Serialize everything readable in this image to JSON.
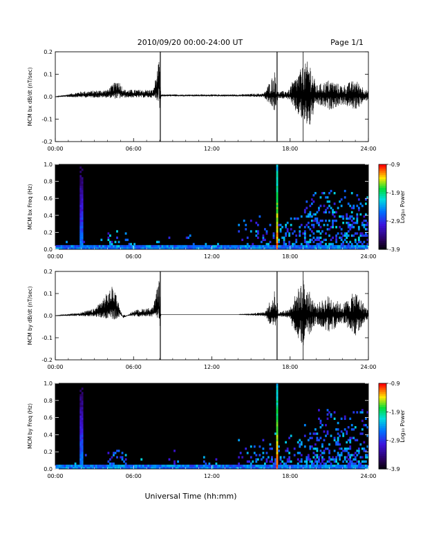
{
  "header": {
    "title": "2010/09/20  00:00-24:00 UT",
    "page": "Page 1/1"
  },
  "xlabel_bottom": "Universal Time (hh:mm)",
  "chart_data": [
    {
      "type": "line",
      "ylabel": "MCM bx dB/dt (nT/sec)",
      "xlim": [
        0,
        24
      ],
      "ylim": [
        -0.2,
        0.2
      ],
      "xticks": [
        "00:00",
        "06:00",
        "12:00",
        "18:00",
        "24:00"
      ],
      "yticks": [
        "-0.2",
        "-0.1",
        "0.0",
        "0.1",
        "0.2"
      ],
      "series": [
        {
          "x": [
            0,
            2,
            4,
            4.8,
            5.3,
            6,
            7.5,
            8.0,
            8.1,
            10,
            12,
            14,
            16,
            16.9,
            17.0,
            17.1,
            18,
            19,
            19.5,
            20,
            21,
            22,
            23,
            24
          ],
          "y": [
            0.0,
            0.03,
            0.04,
            0.1,
            0.04,
            0.04,
            0.04,
            0.22,
            0.01,
            0.01,
            0.01,
            0.01,
            0.02,
            0.22,
            -0.2,
            0.03,
            0.05,
            0.15,
            0.18,
            0.05,
            0.08,
            0.05,
            0.08,
            0.02
          ]
        }
      ]
    },
    {
      "type": "heatmap",
      "ylabel": "MCM bx Freq (Hz)",
      "xlim": [
        0,
        24
      ],
      "ylim": [
        0,
        1
      ],
      "xticks": [
        "00:00",
        "06:00",
        "12:00",
        "18:00",
        "24:00"
      ],
      "yticks": [
        "0.0",
        "0.2",
        "0.4",
        "0.6",
        "0.8",
        "1.0"
      ],
      "colorbar": {
        "label": "Log₁₀ Power",
        "ticks": [
          "-0.9",
          "-1.9",
          "-2.9",
          "-3.9"
        ],
        "range": [
          -3.9,
          -0.9
        ]
      },
      "features": [
        {
          "t": 2.0,
          "kind": "vertical-line",
          "level": -2.6
        },
        {
          "t": 17.0,
          "kind": "vertical-line",
          "level": -1.2
        },
        {
          "t_start": 19.0,
          "t_end": 24.0,
          "kind": "broadband",
          "fmax": 0.75,
          "level": -2.8
        }
      ]
    },
    {
      "type": "line",
      "ylabel": "MCM by dB/dt (nT/sec)",
      "xlim": [
        0,
        24
      ],
      "ylim": [
        -0.2,
        0.2
      ],
      "xticks": [
        "00:00",
        "06:00",
        "12:00",
        "18:00",
        "24:00"
      ],
      "yticks": [
        "-0.2",
        "-0.1",
        "0.0",
        "0.1",
        "0.2"
      ],
      "series": [
        {
          "x": [
            0,
            2,
            3,
            4.5,
            5.2,
            6,
            7.5,
            8.0,
            8.1,
            10,
            12,
            14,
            16,
            16.9,
            17.0,
            17.1,
            18,
            19,
            20,
            21,
            22,
            23,
            24
          ],
          "y": [
            0.0,
            0.02,
            0.04,
            0.18,
            -0.02,
            0.03,
            0.05,
            0.22,
            0.0,
            0.0,
            0.0,
            0.0,
            0.02,
            0.22,
            -0.2,
            0.02,
            0.05,
            0.18,
            0.05,
            0.1,
            0.05,
            0.12,
            0.02
          ]
        }
      ]
    },
    {
      "type": "heatmap",
      "ylabel": "MCM by Freq (Hz)",
      "xlim": [
        0,
        24
      ],
      "ylim": [
        0,
        1
      ],
      "xticks": [
        "00:00",
        "06:00",
        "12:00",
        "18:00",
        "24:00"
      ],
      "yticks": [
        "0.0",
        "0.2",
        "0.4",
        "0.6",
        "0.8",
        "1.0"
      ],
      "colorbar": {
        "label": "Log₁₀ Power",
        "ticks": [
          "-0.9",
          "-1.9",
          "-2.9",
          "-3.9"
        ],
        "range": [
          -3.9,
          -0.9
        ]
      },
      "features": [
        {
          "t": 2.0,
          "kind": "vertical-line",
          "level": -2.6
        },
        {
          "t": 17.0,
          "kind": "vertical-line",
          "level": -1.2
        },
        {
          "t_start": 19.0,
          "t_end": 24.0,
          "kind": "broadband",
          "fmax": 0.75,
          "level": -2.8
        }
      ]
    }
  ]
}
